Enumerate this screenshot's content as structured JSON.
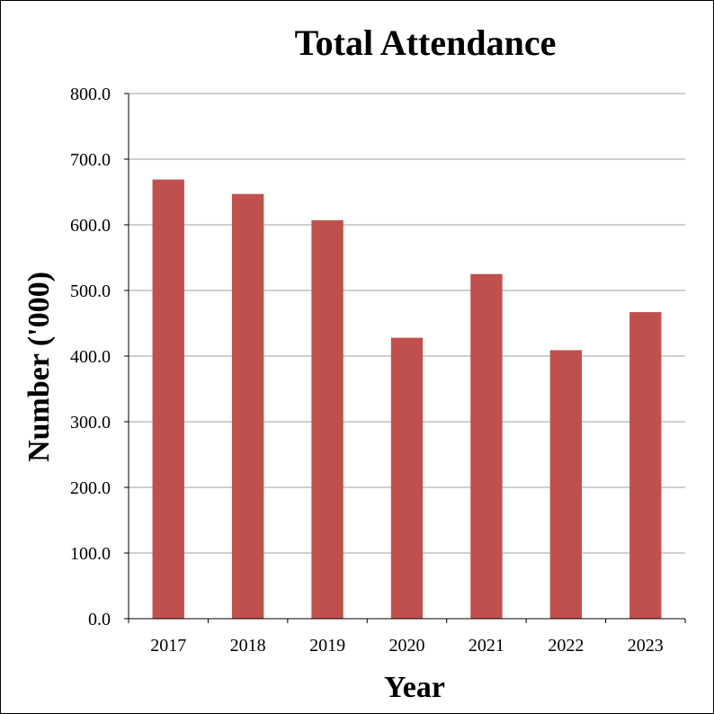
{
  "chart_data": {
    "type": "bar",
    "title": "Total Attendance",
    "xlabel": "Year",
    "ylabel": "Number ('000)",
    "categories": [
      "2017",
      "2018",
      "2019",
      "2020",
      "2021",
      "2022",
      "2023"
    ],
    "values": [
      669,
      647,
      607,
      428,
      525,
      409,
      467
    ],
    "ylim": [
      0,
      800
    ],
    "yticks": [
      "0.0",
      "100.0",
      "200.0",
      "300.0",
      "400.0",
      "500.0",
      "600.0",
      "700.0",
      "800.0"
    ],
    "grid": true,
    "legend": "none",
    "bar_color": "#C0504D",
    "grid_color": "#BFBFBF"
  }
}
